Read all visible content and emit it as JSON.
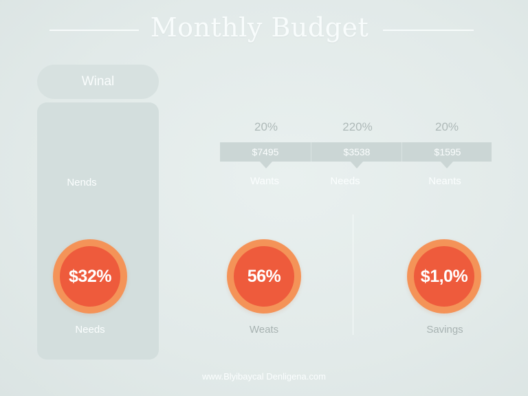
{
  "header": {
    "title": "Monthly Budget"
  },
  "tab": {
    "label": "Winal"
  },
  "left_panel": {
    "top_label": "Nends"
  },
  "columns": [
    {
      "percent": "20%",
      "amount": "$7495",
      "label": "Wants"
    },
    {
      "percent": "220%",
      "amount": "$3538",
      "label": "Needs"
    },
    {
      "percent": "20%",
      "amount": "$1595",
      "label": "Neants"
    }
  ],
  "circles": [
    {
      "value": "$32%",
      "label": "Needs"
    },
    {
      "value": "56%",
      "label": "Weats"
    },
    {
      "value": "$1,0%",
      "label": "Savings"
    }
  ],
  "colors": {
    "background": "#e3ebea",
    "circle_outer": "#f49358",
    "circle_inner": "#ee5b3c",
    "panel": "#d3dedd",
    "amount_band": "#cbd6d5"
  },
  "footer": {
    "text": "www.Blyibaycal Denligena.com"
  }
}
